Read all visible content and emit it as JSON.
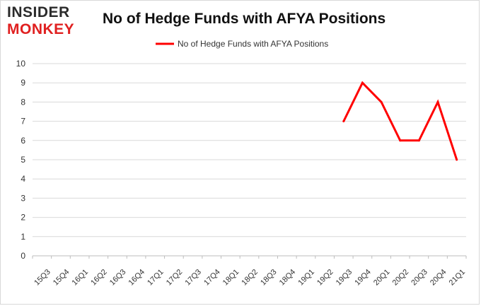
{
  "logo": {
    "line1": "INSIDER",
    "line2": "MONKEY"
  },
  "chart_data": {
    "type": "line",
    "title": "No of Hedge Funds with AFYA Positions",
    "xlabel": "",
    "ylabel": "",
    "categories": [
      "15Q3",
      "15Q4",
      "16Q1",
      "16Q2",
      "16Q3",
      "16Q4",
      "17Q1",
      "17Q2",
      "17Q3",
      "17Q4",
      "18Q1",
      "18Q2",
      "18Q3",
      "18Q4",
      "19Q1",
      "19Q2",
      "19Q3",
      "19Q4",
      "20Q1",
      "20Q2",
      "20Q3",
      "20Q4",
      "21Q1"
    ],
    "series": [
      {
        "name": "No of Hedge Funds with AFYA Positions",
        "values": [
          null,
          null,
          null,
          null,
          null,
          null,
          null,
          null,
          null,
          null,
          null,
          null,
          null,
          null,
          null,
          null,
          7,
          9,
          8,
          6,
          6,
          8,
          5
        ],
        "color": "#ff0000"
      }
    ],
    "ylim": [
      0,
      10
    ],
    "yticks": [
      "0",
      "1",
      "2",
      "3",
      "4",
      "5",
      "6",
      "7",
      "8",
      "9",
      "10"
    ],
    "grid": true,
    "legend": "top-center"
  }
}
